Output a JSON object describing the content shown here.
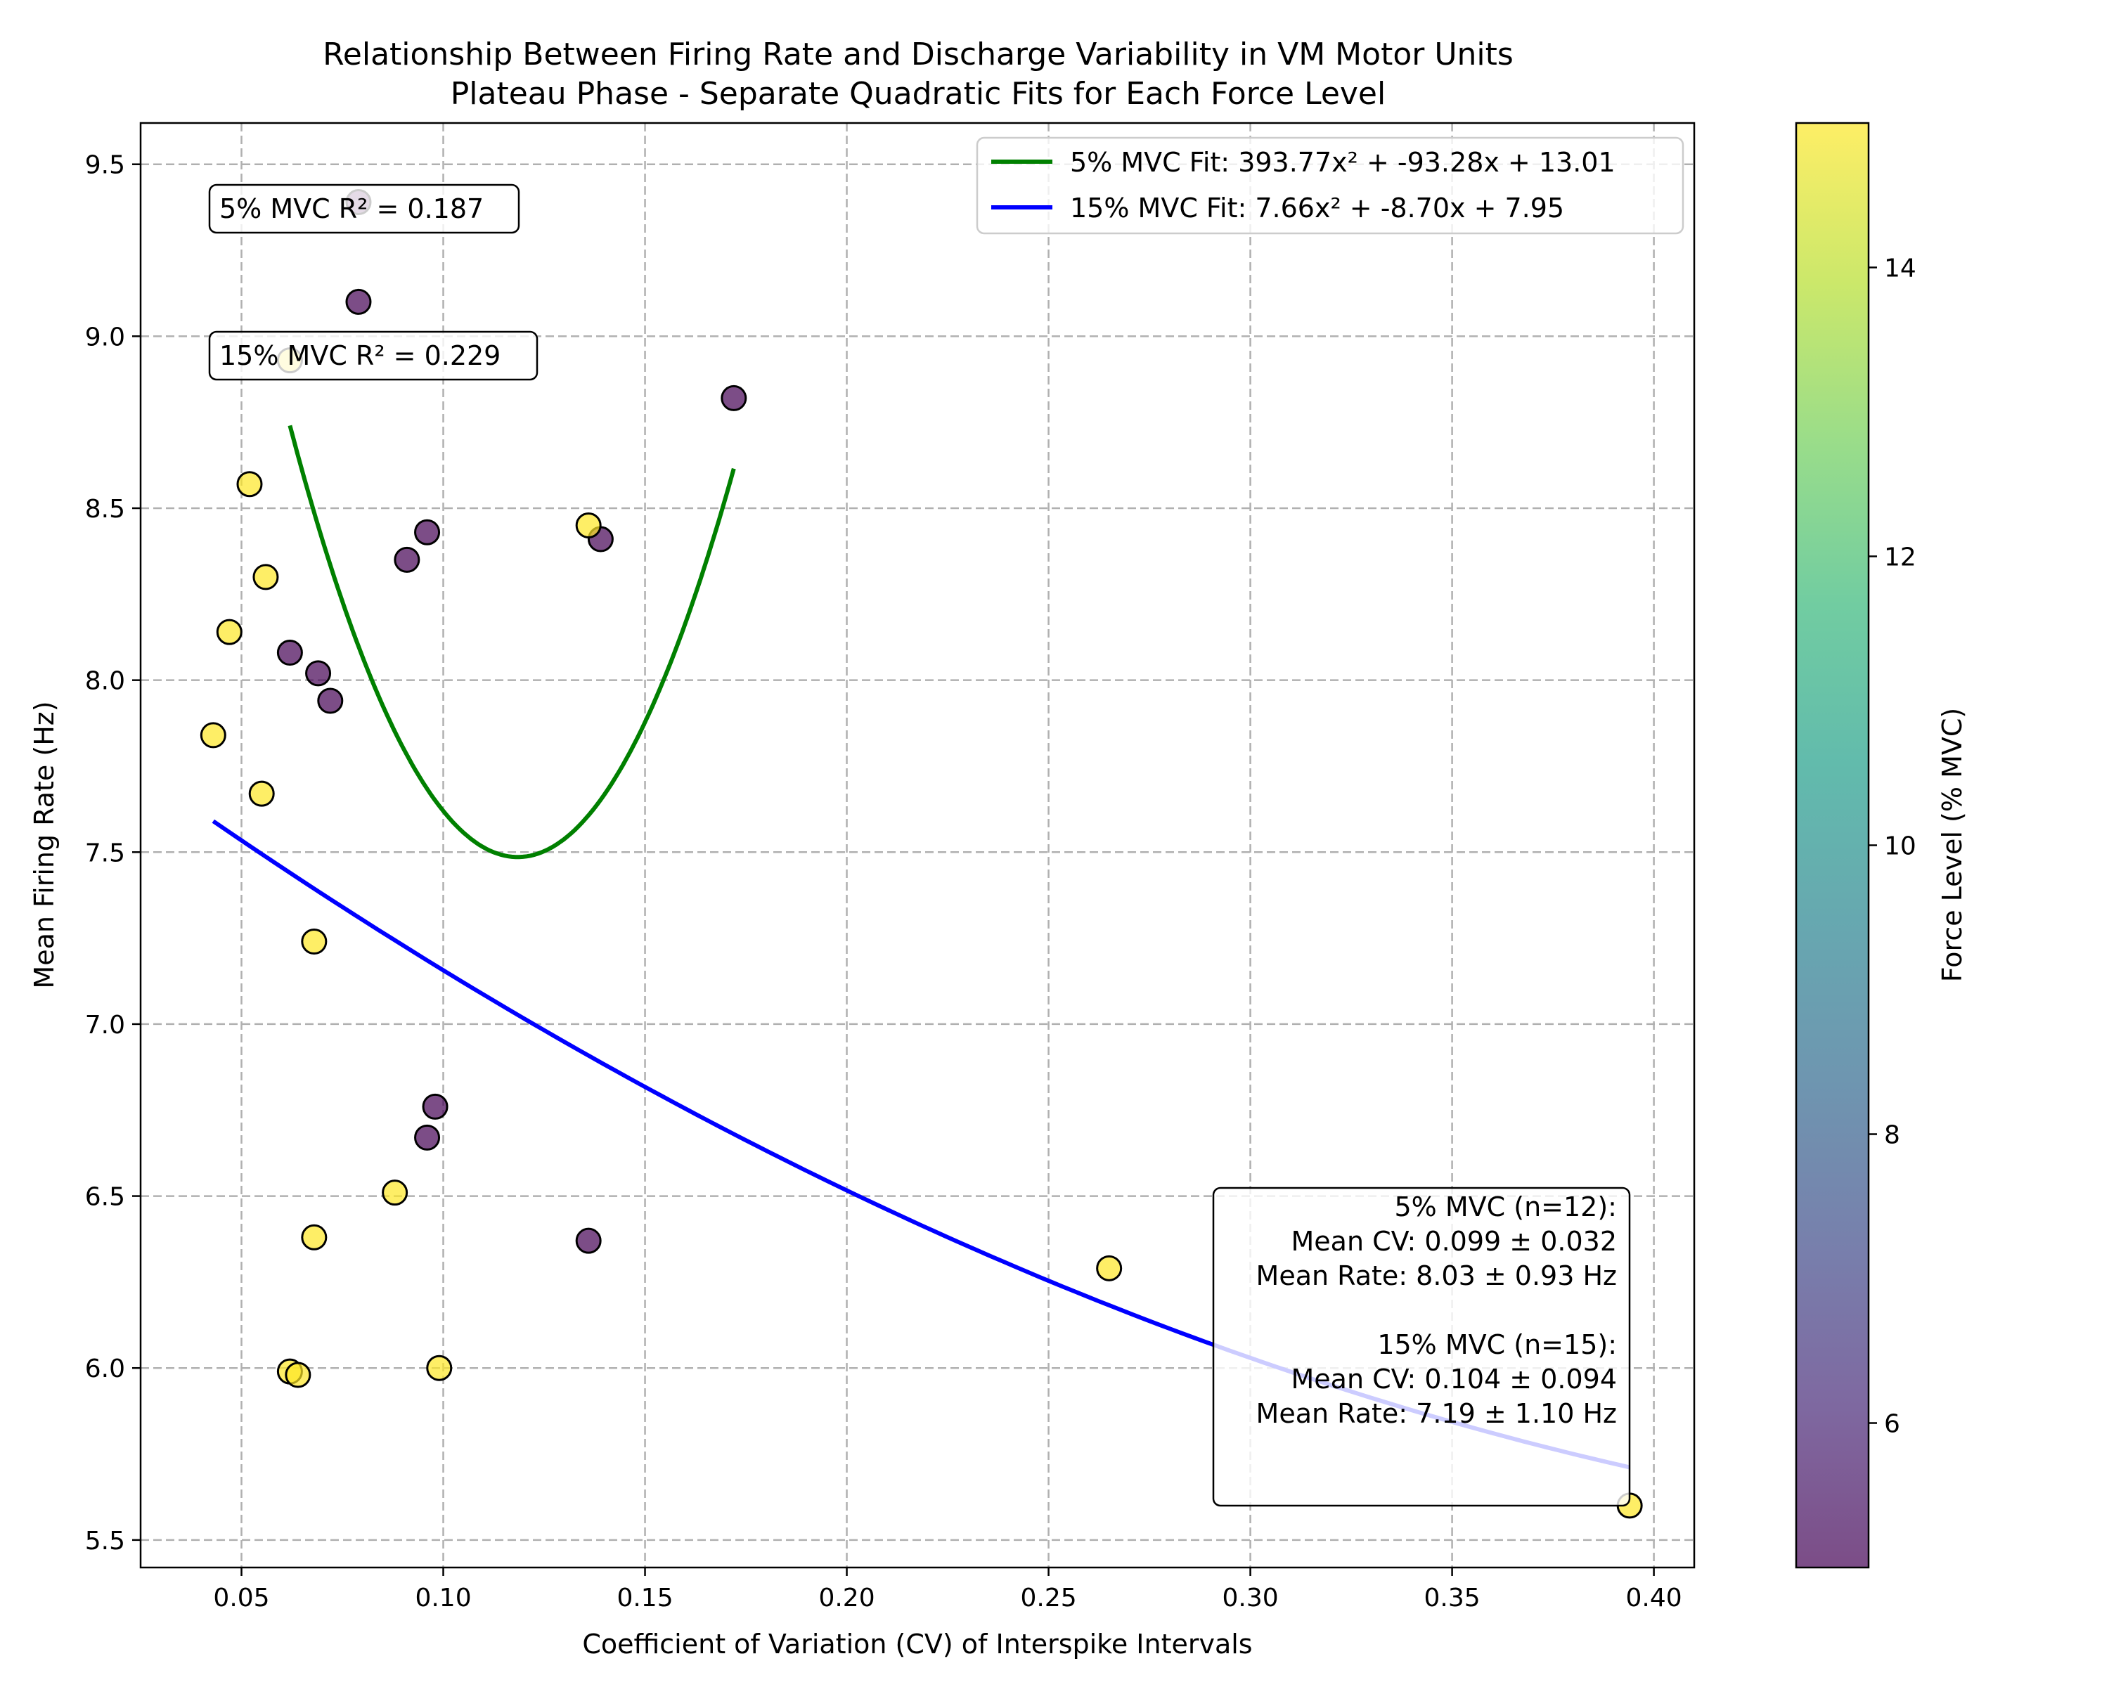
{
  "chart_data": {
    "type": "scatter",
    "title_line1": "Relationship Between Firing Rate and Discharge Variability in VM Motor Units",
    "title_line2": "Plateau Phase - Separate Quadratic Fits for Each Force Level",
    "xlabel": "Coefficient of Variation (CV) of Interspike Intervals",
    "ylabel": "Mean Firing Rate (Hz)",
    "xlim": [
      0.025,
      0.41
    ],
    "ylim": [
      5.42,
      9.62
    ],
    "x_ticks": [
      0.05,
      0.1,
      0.15,
      0.2,
      0.25,
      0.3,
      0.35,
      0.4
    ],
    "x_tick_labels": [
      "0.05",
      "0.10",
      "0.15",
      "0.20",
      "0.25",
      "0.30",
      "0.35",
      "0.40"
    ],
    "y_ticks": [
      5.5,
      6.0,
      6.5,
      7.0,
      7.5,
      8.0,
      8.5,
      9.0,
      9.5
    ],
    "y_tick_labels": [
      "5.5",
      "6.0",
      "6.5",
      "7.0",
      "7.5",
      "8.0",
      "8.5",
      "9.0",
      "9.5"
    ],
    "grid": true,
    "legend_position": "top-right",
    "colors": {
      "mvc5_point": "#440154",
      "mvc15_point": "#fde725",
      "fit5": "#008000",
      "fit15": "#0000ff",
      "point_edge": "#000000"
    },
    "series": [
      {
        "force": 5,
        "points": [
          {
            "x": 0.079,
            "y": 9.39
          },
          {
            "x": 0.079,
            "y": 9.1
          },
          {
            "x": 0.172,
            "y": 8.82
          },
          {
            "x": 0.096,
            "y": 8.43
          },
          {
            "x": 0.091,
            "y": 8.35
          },
          {
            "x": 0.139,
            "y": 8.41
          },
          {
            "x": 0.062,
            "y": 8.08
          },
          {
            "x": 0.069,
            "y": 8.02
          },
          {
            "x": 0.072,
            "y": 7.94
          },
          {
            "x": 0.098,
            "y": 6.76
          },
          {
            "x": 0.096,
            "y": 6.67
          },
          {
            "x": 0.136,
            "y": 6.37
          }
        ]
      },
      {
        "force": 15,
        "points": [
          {
            "x": 0.062,
            "y": 8.93
          },
          {
            "x": 0.052,
            "y": 8.57
          },
          {
            "x": 0.056,
            "y": 8.3
          },
          {
            "x": 0.047,
            "y": 8.14
          },
          {
            "x": 0.136,
            "y": 8.45
          },
          {
            "x": 0.043,
            "y": 7.84
          },
          {
            "x": 0.055,
            "y": 7.67
          },
          {
            "x": 0.068,
            "y": 7.24
          },
          {
            "x": 0.088,
            "y": 6.51
          },
          {
            "x": 0.068,
            "y": 6.38
          },
          {
            "x": 0.062,
            "y": 5.99
          },
          {
            "x": 0.064,
            "y": 5.98
          },
          {
            "x": 0.099,
            "y": 6.0
          },
          {
            "x": 0.265,
            "y": 6.29
          },
          {
            "x": 0.394,
            "y": 5.6
          }
        ]
      }
    ],
    "fits": [
      {
        "label": "5% MVC Fit: 393.77x² + -93.28x + 13.01",
        "a": 393.77,
        "b": -93.28,
        "c": 13.01,
        "x_range": [
          0.062,
          0.172
        ]
      },
      {
        "label": "15% MVC Fit: 7.66x² + -8.70x + 7.95",
        "a": 7.66,
        "b": -8.7,
        "c": 7.95,
        "x_range": [
          0.043,
          0.394
        ]
      }
    ],
    "r2_boxes": [
      "5% MVC R² = 0.187",
      "15% MVC R² = 0.229"
    ],
    "stats_box": [
      "5% MVC (n=12):",
      "Mean CV: 0.099 ± 0.032",
      "Mean Rate: 8.03 ± 0.93 Hz",
      "",
      "15% MVC (n=15):",
      "Mean CV: 0.104 ± 0.094",
      "Mean Rate: 7.19 ± 1.10 Hz"
    ],
    "colorbar": {
      "label": "Force Level (% MVC)",
      "range": [
        5,
        15
      ],
      "ticks": [
        6,
        8,
        10,
        12,
        14
      ],
      "tick_labels": [
        "6",
        "8",
        "10",
        "12",
        "14"
      ],
      "colormap": [
        "#440154",
        "#482878",
        "#3e4989",
        "#31688e",
        "#26828e",
        "#1f9e89",
        "#35b779",
        "#6ece58",
        "#b5de2b",
        "#fde725"
      ]
    }
  }
}
